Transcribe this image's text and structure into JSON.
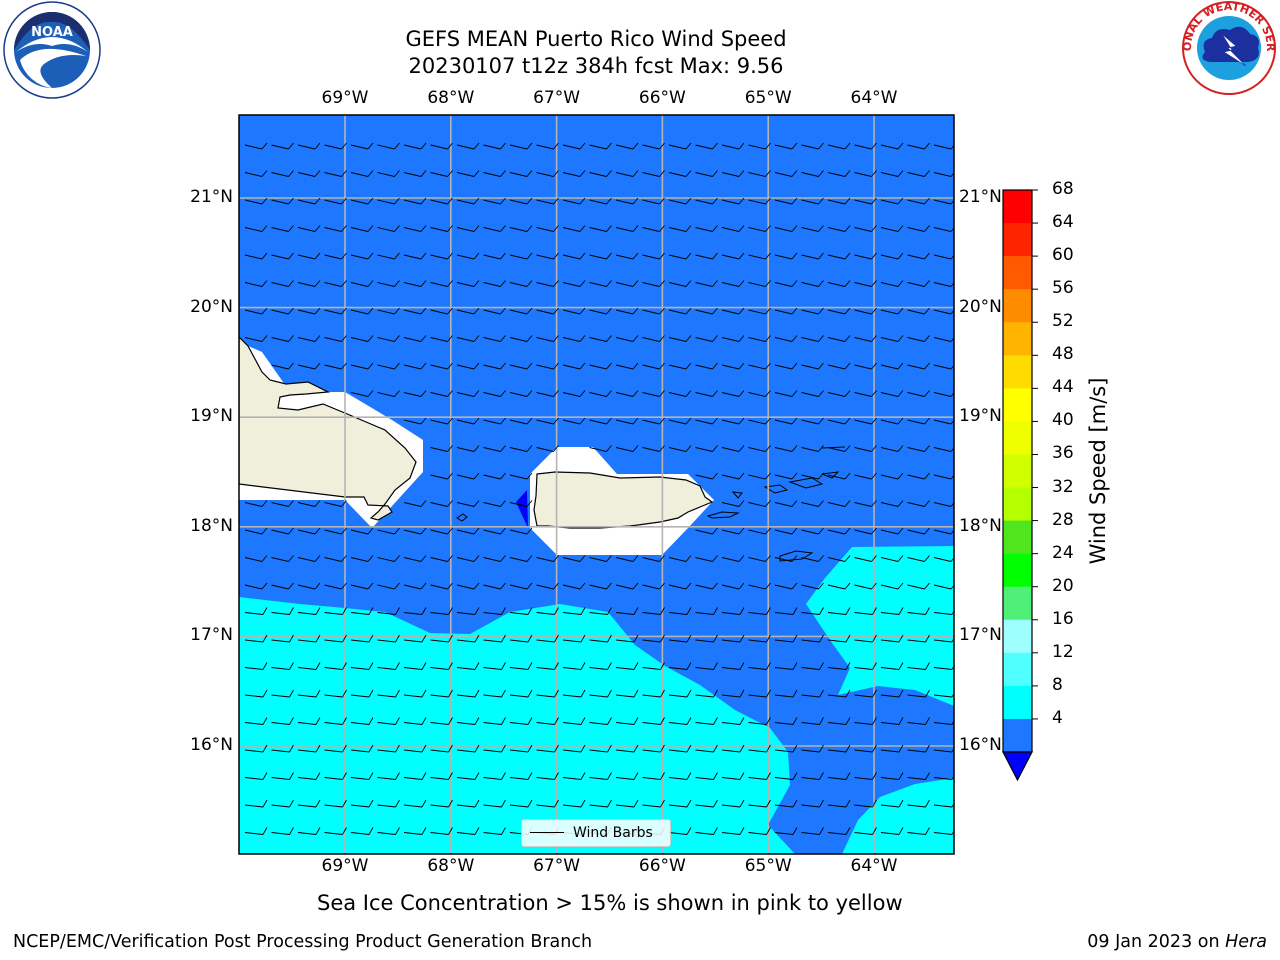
{
  "title": {
    "line1": "GEFS MEAN Puerto Rico Wind Speed",
    "line2": "20230107 t12z 384h fcst   Max: 9.56"
  },
  "axes": {
    "lon_ticks": [
      "69°W",
      "68°W",
      "67°W",
      "66°W",
      "65°W",
      "64°W"
    ],
    "lat_ticks": [
      "21°N",
      "20°N",
      "19°N",
      "18°N",
      "17°N",
      "16°N"
    ]
  },
  "legend": {
    "wind_barbs": "Wind Barbs"
  },
  "colorbar": {
    "label": "Wind Speed [m/s]",
    "ticks": [
      "68",
      "64",
      "60",
      "56",
      "52",
      "48",
      "44",
      "40",
      "36",
      "32",
      "28",
      "24",
      "20",
      "16",
      "12",
      "8",
      "4"
    ],
    "colors": [
      "#ff0000",
      "#ff2400",
      "#ff5a00",
      "#ff8c00",
      "#ffb400",
      "#ffdc00",
      "#ffff00",
      "#f0ff00",
      "#d2ff00",
      "#b4ff00",
      "#50e61e",
      "#00ff00",
      "#50f078",
      "#9fffff",
      "#50ffff",
      "#00ffff",
      "#1e78ff"
    ],
    "extend_color": "#0000ff"
  },
  "map_colors": {
    "ocean_4_8": "#1e78ff",
    "ocean_8_12": "#00ffff",
    "land": "#efefdc"
  },
  "footer": {
    "note": "Sea Ice Concentration > 15% is shown in pink to yellow",
    "left": "NCEP/EMC/Verification Post Processing Product Generation Branch",
    "date": "09 Jan 2023 on ",
    "machine": "Hera"
  },
  "logos": {
    "noaa": "NOAA",
    "nws": "NATIONAL WEATHER SERVICE"
  }
}
